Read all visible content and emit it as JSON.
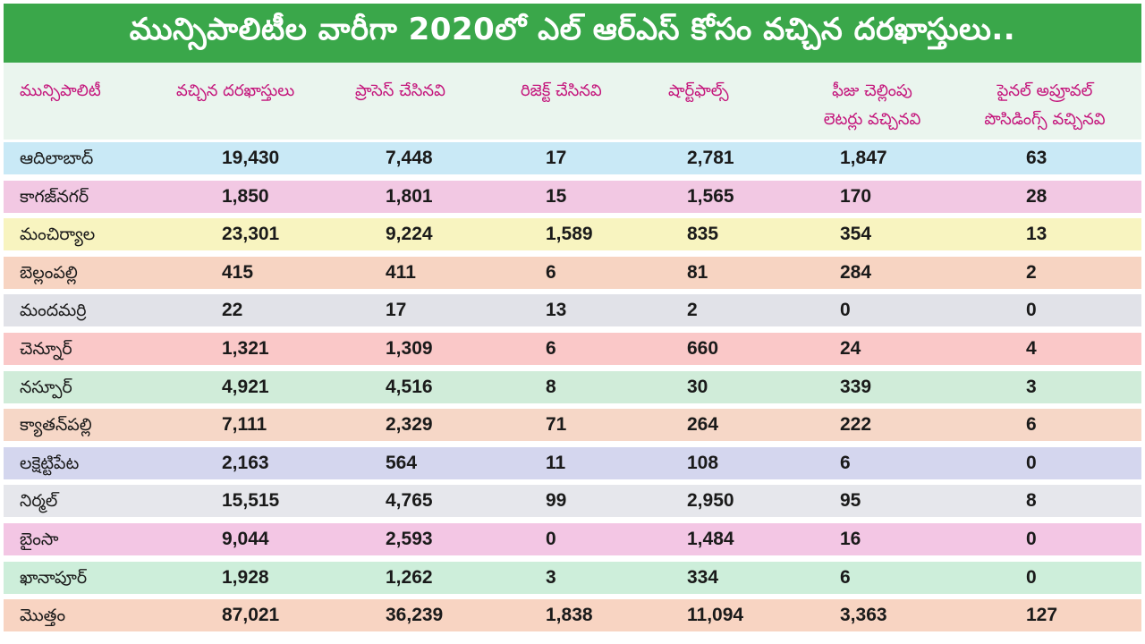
{
  "title": "మున్సిపాలిటీల వారీగా 2020లో ఎల్ ఆర్ఎస్ కోసం వచ్చిన దరఖాస్తులు..",
  "headers": [
    [
      "మున్సిపాలిటీ"
    ],
    [
      "వచ్చిన దరఖాస్తులు"
    ],
    [
      "ప్రాసెస్ చేసినవి"
    ],
    [
      "రిజెక్ట్ చేసినవి"
    ],
    [
      "షార్ట్‌ఫాల్స్"
    ],
    [
      "ఫీజు చెల్లింపు",
      "లెటర్లు వచ్చినవి"
    ],
    [
      "పైనల్ అప్రూవల్",
      "పొసిడింగ్స్ వచ్చినవి"
    ]
  ],
  "row_colors": [
    "#c9e9f6",
    "#f2c8e3",
    "#f8f4c0",
    "#f7d4c2",
    "#e1e2e8",
    "#fac8c8",
    "#d0ecd9",
    "#f6d7c7",
    "#d4d6ee",
    "#e6e7ec",
    "#f3c6e4",
    "#cdeeda",
    "#f8d4c2"
  ],
  "rows": [
    [
      "ఆదిలాబాద్",
      "19,430",
      "7,448",
      "17",
      "2,781",
      "1,847",
      "63"
    ],
    [
      "కాగజ్‌నగర్",
      "1,850",
      "1,801",
      "15",
      "1,565",
      "170",
      "28"
    ],
    [
      "మంచిర్యాల",
      "23,301",
      "9,224",
      "1,589",
      "835",
      "354",
      "13"
    ],
    [
      "బెల్లంపల్లి",
      "415",
      "411",
      "6",
      "81",
      "284",
      "2"
    ],
    [
      "మందమర్రి",
      "22",
      "17",
      "13",
      "2",
      "0",
      "0"
    ],
    [
      "చెన్నూర్",
      "1,321",
      "1,309",
      "6",
      "660",
      "24",
      "4"
    ],
    [
      "నస్పూర్",
      "4,921",
      "4,516",
      "8",
      "30",
      "339",
      "3"
    ],
    [
      "క్యాతన్‌పల్లి",
      "7,111",
      "2,329",
      "71",
      "264",
      "222",
      "6"
    ],
    [
      "లక్షెట్టిపేట",
      "2,163",
      "564",
      "11",
      "108",
      "6",
      "0"
    ],
    [
      "నిర్మల్",
      "15,515",
      "4,765",
      "99",
      "2,950",
      "95",
      "8"
    ],
    [
      "బైంసా",
      "9,044",
      "2,593",
      "0",
      "1,484",
      "16",
      "0"
    ],
    [
      "ఖానాపూర్",
      "1,928",
      "1,262",
      "3",
      "334",
      "6",
      "0"
    ],
    [
      "మొత్తం",
      "87,021",
      "36,239",
      "1,838",
      "11,094",
      "3,363",
      "127"
    ]
  ]
}
